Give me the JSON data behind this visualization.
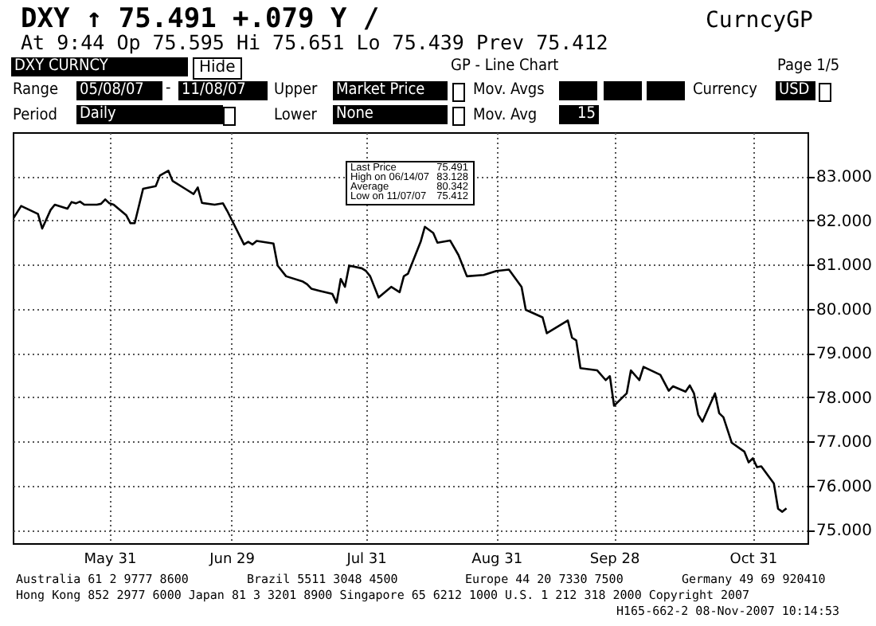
{
  "chart_data": {
    "type": "line",
    "title": "DXY ↑ 75.491 +.079 Y /",
    "subtitle": "At 9:44 Op 75.595 Hi 75.651 Lo 75.439 Prev 75.412",
    "annotations": [
      "CurncyGP",
      "DXY CURNCY",
      "Hide",
      "GP - Line Chart",
      "Page 1/5",
      "Range",
      "05/08/07",
      "-",
      "11/08/07",
      "Upper",
      "Market Price",
      "Mov. Avgs",
      "Currency",
      "USD",
      "Period",
      "Daily",
      "Lower",
      "None",
      "Mov. Avg",
      "15",
      "Last Price",
      "75.491",
      "High on 06/14/07",
      "83.128",
      "Average",
      "80.342",
      "Low on 11/07/07",
      "75.412",
      "Australia 61 2 9777 8600",
      "Brazil 5511 3048 4500",
      "Europe 44 20 7330 7500",
      "Germany 49 69 920410",
      "Hong Kong 852 2977 6000 Japan 81 3 3201 8900 Singapore 65 6212 1000 U.S. 1 212 318 2000 Copyright 2007",
      "H165-662-2 08-Nov-2007 10:14:53"
    ],
    "x": [
      "2007-05-08",
      "2007-05-10",
      "2007-05-14",
      "2007-05-15",
      "2007-05-17",
      "2007-05-18",
      "2007-05-21",
      "2007-05-22",
      "2007-05-23",
      "2007-05-24",
      "2007-05-25",
      "2007-05-28",
      "2007-05-29",
      "2007-05-30",
      "2007-05-31",
      "2007-06-01",
      "2007-06-04",
      "2007-06-05",
      "2007-06-06",
      "2007-06-08",
      "2007-06-11",
      "2007-06-12",
      "2007-06-14",
      "2007-06-15",
      "2007-06-18",
      "2007-06-20",
      "2007-06-21",
      "2007-06-22",
      "2007-06-25",
      "2007-06-27",
      "2007-06-28",
      "2007-07-02",
      "2007-07-03",
      "2007-07-04",
      "2007-07-05",
      "2007-07-09",
      "2007-07-10",
      "2007-07-12",
      "2007-07-16",
      "2007-07-17",
      "2007-07-18",
      "2007-07-20",
      "2007-07-23",
      "2007-07-24",
      "2007-07-25",
      "2007-07-26",
      "2007-07-27",
      "2007-07-30",
      "2007-07-31",
      "2007-08-01",
      "2007-08-03",
      "2007-08-06",
      "2007-08-08",
      "2007-08-09",
      "2007-08-10",
      "2007-08-13",
      "2007-08-14",
      "2007-08-16",
      "2007-08-17",
      "2007-08-20",
      "2007-08-22",
      "2007-08-24",
      "2007-08-28",
      "2007-08-31",
      "2007-09-03",
      "2007-09-06",
      "2007-09-07",
      "2007-09-11",
      "2007-09-12",
      "2007-09-17",
      "2007-09-18",
      "2007-09-19",
      "2007-09-20",
      "2007-09-24",
      "2007-09-26",
      "2007-09-27",
      "2007-09-28",
      "2007-10-01",
      "2007-10-02",
      "2007-10-04",
      "2007-10-05",
      "2007-10-09",
      "2007-10-11",
      "2007-10-12",
      "2007-10-15",
      "2007-10-16",
      "2007-10-17",
      "2007-10-18",
      "2007-10-19",
      "2007-10-22",
      "2007-10-23",
      "2007-10-24",
      "2007-10-26",
      "2007-10-29",
      "2007-10-30",
      "2007-10-31",
      "2007-11-01",
      "2007-11-02",
      "2007-11-05",
      "2007-11-06",
      "2007-11-07",
      "2007-11-08"
    ],
    "series": [
      {
        "color": "#000000",
        "values": [
          82.03,
          82.33,
          82.15,
          81.82,
          82.24,
          82.36,
          82.27,
          82.42,
          82.39,
          82.43,
          82.36,
          82.36,
          82.38,
          82.48,
          82.39,
          82.36,
          82.12,
          81.94,
          81.94,
          82.72,
          82.78,
          83.02,
          83.13,
          82.9,
          82.72,
          82.6,
          82.75,
          82.4,
          82.36,
          82.39,
          82.22,
          81.46,
          81.52,
          81.46,
          81.54,
          81.48,
          80.98,
          80.74,
          80.62,
          80.56,
          80.46,
          80.41,
          80.34,
          80.14,
          80.68,
          80.5,
          80.98,
          80.92,
          80.86,
          80.74,
          80.26,
          80.5,
          80.38,
          80.74,
          80.8,
          81.52,
          81.86,
          81.72,
          81.5,
          81.55,
          81.22,
          80.74,
          80.77,
          80.86,
          80.89,
          80.5,
          79.98,
          79.81,
          79.45,
          79.74,
          79.35,
          79.29,
          78.66,
          78.61,
          78.39,
          78.48,
          77.81,
          78.09,
          78.61,
          78.39,
          78.69,
          78.51,
          78.15,
          78.25,
          78.13,
          78.27,
          78.09,
          77.61,
          77.45,
          78.09,
          77.64,
          77.55,
          76.97,
          76.77,
          76.53,
          76.62,
          76.42,
          76.44,
          76.05,
          75.48,
          75.41,
          75.49
        ]
      }
    ],
    "xlim": [
      "2007-05-08",
      "2007-11-13"
    ],
    "xticks": [
      {
        "value": "2007-05-31",
        "label": "May 31"
      },
      {
        "value": "2007-06-29",
        "label": "Jun 29"
      },
      {
        "value": "2007-07-31",
        "label": "Jul 31"
      },
      {
        "value": "2007-08-31",
        "label": "Aug 31"
      },
      {
        "value": "2007-09-28",
        "label": "Sep 28"
      },
      {
        "value": "2007-10-31",
        "label": "Oct 31"
      }
    ],
    "ylim": [
      74.7,
      84.0
    ],
    "yticks": [
      {
        "value": 75,
        "label": "75.000"
      },
      {
        "value": 76,
        "label": "76.000"
      },
      {
        "value": 77,
        "label": "77.000"
      },
      {
        "value": 78,
        "label": "78.000"
      },
      {
        "value": 79,
        "label": "79.000"
      },
      {
        "value": 80,
        "label": "80.000"
      },
      {
        "value": 81,
        "label": "81.000"
      },
      {
        "value": 82,
        "label": "82.000"
      },
      {
        "value": 83,
        "label": "83.000"
      }
    ],
    "grid": true,
    "marker": "none",
    "line_style": "solid"
  }
}
